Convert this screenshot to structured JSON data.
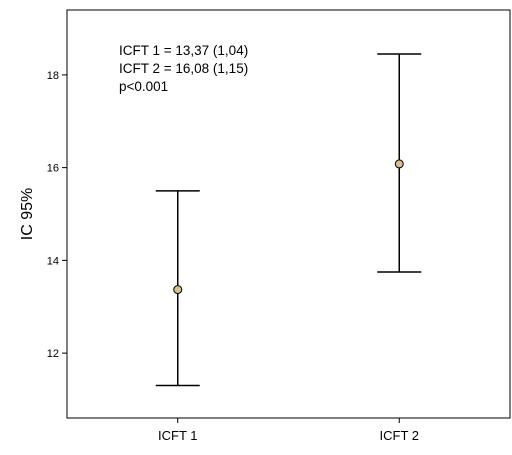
{
  "chart_data": {
    "type": "errorbar",
    "title": "",
    "xlabel": "",
    "ylabel": "IC 95%",
    "categories": [
      "ICFT 1",
      "ICFT 2"
    ],
    "series": [
      {
        "means": [
          13.37,
          16.08
        ],
        "lower": [
          11.3,
          13.75
        ],
        "upper": [
          15.5,
          18.45
        ]
      }
    ],
    "ylim": [
      10.6,
      19.4
    ],
    "yticks": [
      12,
      14,
      16,
      18
    ],
    "ytick_labels": [
      "12",
      "14",
      "16",
      "18"
    ],
    "grid": false,
    "annotations": [
      "ICFT 1 = 13,37 (1,04)",
      "ICFT 2 = 16,08 (1,15)",
      "p<0.001"
    ],
    "colors": {
      "marker_fill": "#d6c28e",
      "line": "#000000"
    }
  }
}
